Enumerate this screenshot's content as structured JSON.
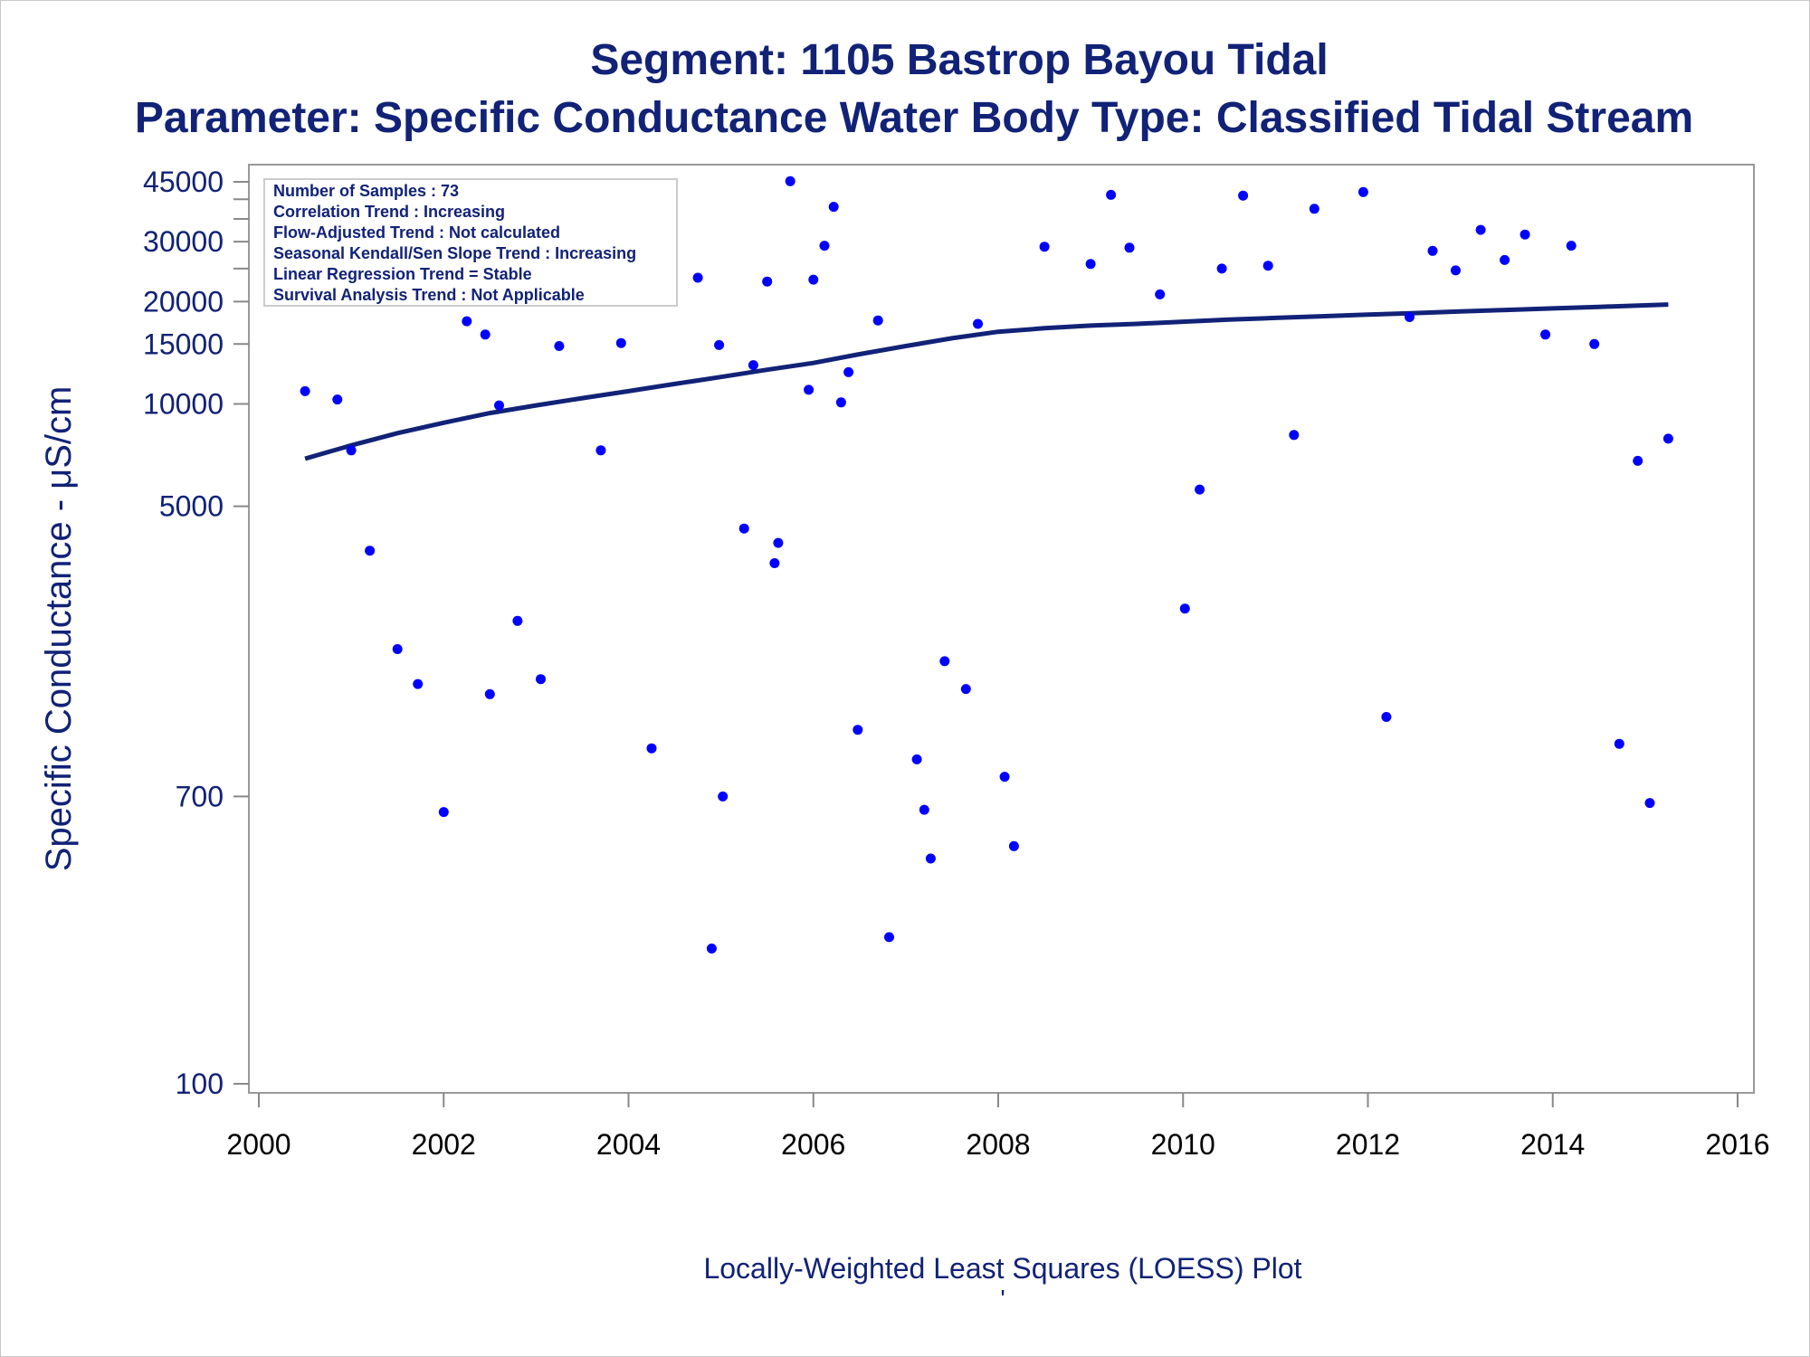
{
  "chart_data": {
    "type": "scatter",
    "title": "Segment: 1105  Bastrop Bayou Tidal",
    "subtitle": "Parameter: Specific Conductance   Water Body Type: Classified Tidal Stream",
    "xlabel": "Locally-Weighted Least Squares (LOESS) Plot",
    "ylabel": "Specific Conductance -  μS/cm",
    "footnote": "'",
    "y_scale": "log",
    "xlim": [
      2000,
      2016
    ],
    "x_ticks": [
      "2000",
      "2002",
      "2004",
      "2006",
      "2008",
      "2010",
      "2012",
      "2014",
      "2016"
    ],
    "y_ticks": [
      {
        "value": 45000,
        "label": "45000"
      },
      {
        "value": 40000,
        "label": ""
      },
      {
        "value": 35000,
        "label": ""
      },
      {
        "value": 30000,
        "label": "30000"
      },
      {
        "value": 25000,
        "label": ""
      },
      {
        "value": 20000,
        "label": "20000"
      },
      {
        "value": 15000,
        "label": "15000"
      },
      {
        "value": 10000,
        "label": "10000"
      },
      {
        "value": 5000,
        "label": "5000"
      },
      {
        "value": 700,
        "label": "700"
      },
      {
        "value": 100,
        "label": "100"
      }
    ],
    "colors": {
      "points": "#0000ff",
      "trend": "#112277",
      "text": "#112277",
      "frame": "#999999"
    },
    "stats_box": [
      "Number of Samples : 73",
      "Correlation Trend : Increasing",
      "Flow-Adjusted Trend : Not calculated",
      "Seasonal Kendall/Sen Slope Trend : Increasing",
      "Linear Regression Trend = Stable",
      "Survival Analysis Trend : Not Applicable"
    ],
    "series": [
      {
        "kind": "scatter",
        "points": [
          [
            2000.5,
            10900
          ],
          [
            2000.85,
            10300
          ],
          [
            2001.0,
            7300
          ],
          [
            2001.2,
            3700
          ],
          [
            2001.5,
            1900
          ],
          [
            2001.62,
            21000
          ],
          [
            2001.72,
            1500
          ],
          [
            2002.0,
            630
          ],
          [
            2002.25,
            17500
          ],
          [
            2002.45,
            16000
          ],
          [
            2002.5,
            1400
          ],
          [
            2002.6,
            9900
          ],
          [
            2002.8,
            2300
          ],
          [
            2003.05,
            1550
          ],
          [
            2003.25,
            14800
          ],
          [
            2003.5,
            21200
          ],
          [
            2003.7,
            7300
          ],
          [
            2003.92,
            15100
          ],
          [
            2004.25,
            970
          ],
          [
            2004.75,
            23500
          ],
          [
            2004.9,
            250
          ],
          [
            2004.98,
            14900
          ],
          [
            2005.02,
            700
          ],
          [
            2005.25,
            4300
          ],
          [
            2005.35,
            13000
          ],
          [
            2005.5,
            22900
          ],
          [
            2005.58,
            3400
          ],
          [
            2005.62,
            3900
          ],
          [
            2005.75,
            45200
          ],
          [
            2005.95,
            11000
          ],
          [
            2006.0,
            23200
          ],
          [
            2006.12,
            29200
          ],
          [
            2006.22,
            38000
          ],
          [
            2006.3,
            10100
          ],
          [
            2006.38,
            12400
          ],
          [
            2006.48,
            1100
          ],
          [
            2006.7,
            17600
          ],
          [
            2006.82,
            270
          ],
          [
            2007.12,
            900
          ],
          [
            2007.2,
            640
          ],
          [
            2007.27,
            460
          ],
          [
            2007.42,
            1750
          ],
          [
            2007.65,
            1450
          ],
          [
            2007.78,
            17200
          ],
          [
            2008.07,
            800
          ],
          [
            2008.17,
            500
          ],
          [
            2008.5,
            29000
          ],
          [
            2009.0,
            25800
          ],
          [
            2009.22,
            41200
          ],
          [
            2009.42,
            28800
          ],
          [
            2009.75,
            21000
          ],
          [
            2010.02,
            2500
          ],
          [
            2010.18,
            5600
          ],
          [
            2010.42,
            25000
          ],
          [
            2010.65,
            41000
          ],
          [
            2010.92,
            25500
          ],
          [
            2011.2,
            8100
          ],
          [
            2011.42,
            37500
          ],
          [
            2011.95,
            42000
          ],
          [
            2012.2,
            1200
          ],
          [
            2012.45,
            18000
          ],
          [
            2012.7,
            28200
          ],
          [
            2012.95,
            24700
          ],
          [
            2013.22,
            32500
          ],
          [
            2013.48,
            26500
          ],
          [
            2013.7,
            31500
          ],
          [
            2013.92,
            16000
          ],
          [
            2014.2,
            29200
          ],
          [
            2014.45,
            15000
          ],
          [
            2014.72,
            1000
          ],
          [
            2014.92,
            6800
          ],
          [
            2015.05,
            670
          ],
          [
            2015.25,
            7900
          ]
        ]
      },
      {
        "kind": "line",
        "name": "LOESS",
        "points": [
          [
            2000.5,
            6900
          ],
          [
            2001.0,
            7550
          ],
          [
            2001.5,
            8200
          ],
          [
            2002.0,
            8800
          ],
          [
            2002.5,
            9400
          ],
          [
            2003.0,
            9900
          ],
          [
            2003.5,
            10400
          ],
          [
            2004.0,
            10900
          ],
          [
            2004.5,
            11450
          ],
          [
            2005.0,
            12000
          ],
          [
            2005.5,
            12600
          ],
          [
            2006.0,
            13200
          ],
          [
            2006.5,
            14000
          ],
          [
            2007.0,
            14800
          ],
          [
            2007.5,
            15600
          ],
          [
            2008.0,
            16300
          ],
          [
            2008.5,
            16700
          ],
          [
            2009.0,
            17000
          ],
          [
            2009.5,
            17200
          ],
          [
            2010.0,
            17450
          ],
          [
            2010.5,
            17700
          ],
          [
            2011.0,
            17900
          ],
          [
            2011.5,
            18100
          ],
          [
            2012.0,
            18300
          ],
          [
            2012.5,
            18500
          ],
          [
            2013.0,
            18700
          ],
          [
            2013.5,
            18900
          ],
          [
            2014.0,
            19100
          ],
          [
            2014.5,
            19300
          ],
          [
            2015.0,
            19500
          ],
          [
            2015.25,
            19600
          ]
        ]
      }
    ]
  }
}
